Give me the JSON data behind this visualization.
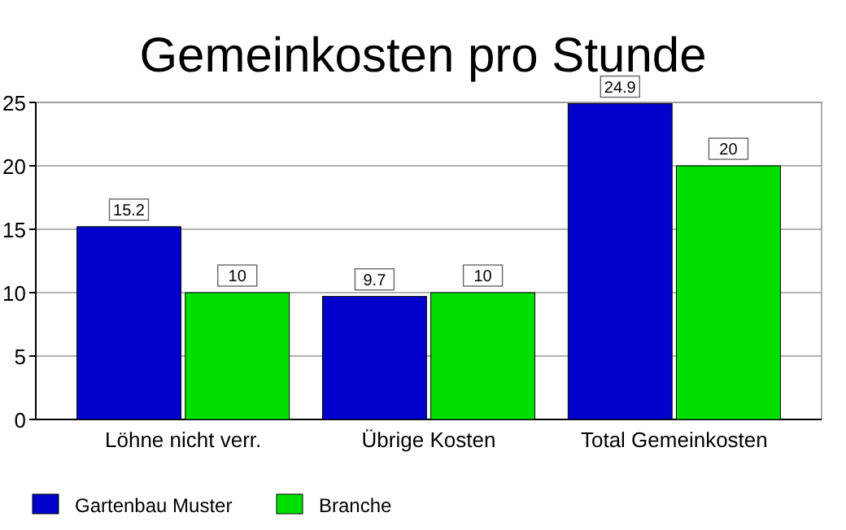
{
  "chart_data": {
    "type": "bar",
    "title": "Gemeinkosten pro Stunde",
    "categories": [
      "Löhne nicht verr.",
      "Übrige Kosten",
      "Total Gemeinkosten"
    ],
    "series": [
      {
        "name": "Gartenbau Muster",
        "color": "#0000cc",
        "values": [
          15.2,
          9.7,
          24.9
        ]
      },
      {
        "name": "Branche",
        "color": "#00e000",
        "values": [
          10,
          10,
          20
        ]
      }
    ],
    "ylim": [
      0,
      25
    ],
    "yticks": [
      0,
      5,
      10,
      15,
      20,
      25
    ],
    "grid": "y",
    "legend": "bottom",
    "data_labels": true
  }
}
